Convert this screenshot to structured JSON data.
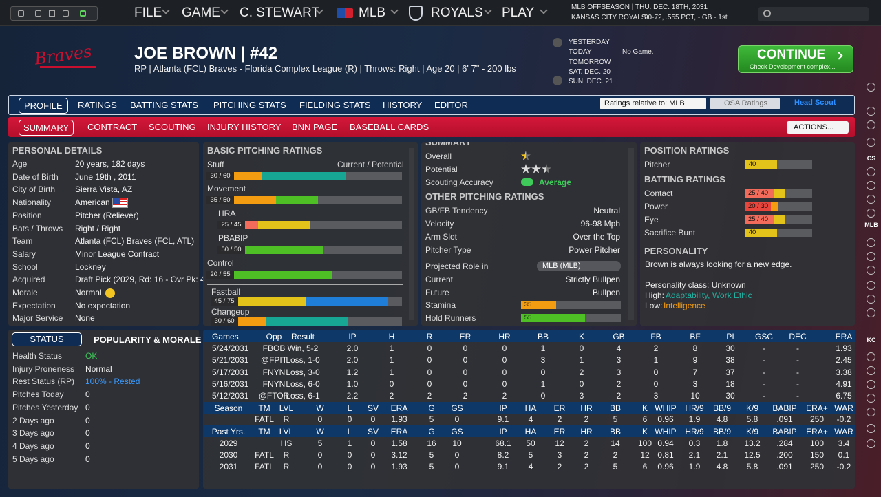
{
  "nav": {
    "items": [
      "FILE",
      "GAME",
      "C. STEWART",
      "MLB",
      "ROYALS",
      "PLAY"
    ]
  },
  "league_status": {
    "line1": "MLB OFFSEASON  |  THU. DEC. 18TH, 2031",
    "team": "KANSAS CITY ROYALS",
    "record": "90-72, .555 PCT, - GB - 1st"
  },
  "player": {
    "logo": "Braves",
    "name": "JOE BROWN  |  #42",
    "info": "RP | Atlanta (FCL) Braves - Florida Complex League (R)  |  Throws: Right  |  Age 20  |  6' 7\" - 200 lbs"
  },
  "schedule": {
    "days": [
      "YESTERDAY",
      "TODAY",
      "TOMORROW",
      "SAT. DEC. 20",
      "SUN. DEC. 21"
    ],
    "today_note": "No Game."
  },
  "continue_button": {
    "label": "CONTINUE",
    "sub": "Check Development complex..."
  },
  "tabs": {
    "items": [
      "PROFILE",
      "RATINGS",
      "BATTING STATS",
      "PITCHING STATS",
      "FIELDING STATS",
      "HISTORY",
      "EDITOR"
    ],
    "selected": 0
  },
  "subtabs": {
    "items": [
      "SUMMARY",
      "CONTRACT",
      "SCOUTING",
      "INJURY HISTORY",
      "BNN PAGE",
      "BASEBALL CARDS"
    ],
    "selected": 0
  },
  "controls": {
    "ratings_select": "Ratings relative to: MLB",
    "osa": "OSA Ratings",
    "scout": "Head Scout",
    "actions": "ACTIONS..."
  },
  "personal_details": {
    "title": "PERSONAL DETAILS",
    "rows": [
      {
        "label": "Age",
        "value": "20 years, 182 days"
      },
      {
        "label": "Date of Birth",
        "value": "June 19th , 2011"
      },
      {
        "label": "City of Birth",
        "value": "Sierra Vista, AZ"
      },
      {
        "label": "Nationality",
        "value": "American"
      },
      {
        "label": "Position",
        "value": "Pitcher (Reliever)"
      },
      {
        "label": "Bats / Throws",
        "value": "Right / Right"
      },
      {
        "label": "Team",
        "value": "Atlanta (FCL) Braves (FCL, ATL)"
      },
      {
        "label": "Salary",
        "value": "Minor League Contract"
      },
      {
        "label": "School",
        "value": "Lockney"
      },
      {
        "label": "Acquired",
        "value": "Draft Pick (2029, Rd: 16 - Ovr Pk: 4"
      },
      {
        "label": "Morale",
        "value": "Normal"
      },
      {
        "label": "Expectation",
        "value": "No expectation"
      },
      {
        "label": "Major Service",
        "value": "None"
      }
    ]
  },
  "status": {
    "tabs": [
      "STATUS",
      "POPULARITY & MORALE"
    ],
    "rows": [
      {
        "label": "Health Status",
        "value": "OK",
        "color": "#3ec95a"
      },
      {
        "label": "Injury Proneness",
        "value": "Normal"
      },
      {
        "label": "Rest Status (RP)",
        "value": "100% - Rested",
        "color": "#3a9bff"
      },
      {
        "label": "Pitches Today",
        "value": "0"
      },
      {
        "label": "Pitches Yesterday",
        "value": "0"
      },
      {
        "label": "2 Days ago",
        "value": "0"
      },
      {
        "label": "3 Days ago",
        "value": "0"
      },
      {
        "label": "4 Days ago",
        "value": "0"
      },
      {
        "label": "5 Days ago",
        "value": "0"
      }
    ]
  },
  "pitching_ratings": {
    "title": "BASIC PITCHING RATINGS",
    "header": "Current / Potential",
    "items": [
      {
        "name": "Stuff",
        "label": "30 / 60",
        "current": 30,
        "potential": 60
      },
      {
        "name": "Movement",
        "label": "35 / 50",
        "current": 35,
        "potential": 50
      },
      {
        "name": "HRA",
        "label": "25 / 45",
        "current": 25,
        "potential": 45,
        "sub": true
      },
      {
        "name": "PBABIP",
        "label": "50 / 50",
        "current": 50,
        "potential": 50,
        "sub": true
      },
      {
        "name": "Control",
        "label": "20 / 55",
        "current": 20,
        "potential": 55
      },
      {
        "name": "Fastball",
        "label": "45 / 75",
        "current": 45,
        "potential": 75,
        "pitch": true
      },
      {
        "name": "Changeup",
        "label": "30 / 60",
        "current": 30,
        "potential": 60,
        "pitch": true
      }
    ]
  },
  "summary": {
    "title": "SUMMARY",
    "overall_label": "Overall",
    "overall_stars": 0.5,
    "potential_label": "Potential",
    "potential_stars": 2.5,
    "accuracy_label": "Scouting Accuracy",
    "accuracy": "Average",
    "other_title": "OTHER PITCHING RATINGS",
    "rows": [
      {
        "label": "GB/FB Tendency",
        "value": "Neutral"
      },
      {
        "label": "Velocity",
        "value": "96-98 Mph"
      },
      {
        "label": "Arm Slot",
        "value": "Over the Top"
      },
      {
        "label": "Pitcher Type",
        "value": "Power Pitcher"
      }
    ],
    "role_label": "Projected Role in",
    "role_select": "MLB (MLB)",
    "role_rows": [
      {
        "label": "Current",
        "value": "Strictly Bullpen"
      },
      {
        "label": "Future",
        "value": "Bullpen"
      }
    ],
    "bars": [
      {
        "label": "Stamina",
        "value": 35
      },
      {
        "label": "Hold Runners",
        "value": 55
      }
    ]
  },
  "position_ratings": {
    "title": "POSITION RATINGS",
    "items": [
      {
        "name": "Pitcher",
        "value": 40
      }
    ]
  },
  "batting_ratings": {
    "title": "BATTING RATINGS",
    "items": [
      {
        "name": "Contact",
        "label": "25 / 40",
        "current": 25,
        "potential": 40
      },
      {
        "name": "Power",
        "label": "20 / 30",
        "current": 20,
        "potential": 30
      },
      {
        "name": "Eye",
        "label": "25 / 40",
        "current": 25,
        "potential": 40
      },
      {
        "name": "Sacrifice Bunt",
        "value": 40
      }
    ]
  },
  "personality": {
    "title": "PERSONALITY",
    "text": "Brown is always looking for a new edge.",
    "class": "Personality class: Unknown",
    "high_label": "High:",
    "high": "Adaptability, Work Ethic",
    "low_label": "Low:",
    "low": "Intelligence"
  },
  "game_log": {
    "columns": [
      "Games",
      "Opp",
      "Result",
      "IP",
      "H",
      "R",
      "ER",
      "HR",
      "BB",
      "K",
      "GB",
      "FB",
      "BF",
      "PI",
      "GSC",
      "DEC",
      "ERA"
    ],
    "rows": [
      [
        "5/24/2031",
        "FBOB",
        "Win, 5-2",
        "2.0",
        "1",
        "0",
        "0",
        "0",
        "1",
        "0",
        "4",
        "2",
        "8",
        "30",
        "-",
        "-",
        "1.93"
      ],
      [
        "5/21/2031",
        "@FPIT",
        "Loss, 1-0",
        "2.0",
        "1",
        "0",
        "0",
        "0",
        "3",
        "1",
        "3",
        "1",
        "9",
        "38",
        "-",
        "-",
        "2.45"
      ],
      [
        "5/17/2031",
        "FNYN",
        "Loss, 3-0",
        "1.2",
        "1",
        "0",
        "0",
        "0",
        "0",
        "2",
        "3",
        "0",
        "7",
        "37",
        "-",
        "-",
        "3.38"
      ],
      [
        "5/16/2031",
        "FNYN",
        "Loss, 6-0",
        "1.0",
        "0",
        "0",
        "0",
        "0",
        "1",
        "0",
        "2",
        "0",
        "3",
        "18",
        "-",
        "-",
        "4.91"
      ],
      [
        "5/12/2031",
        "@FTOR",
        "Loss, 6-1",
        "2.2",
        "2",
        "2",
        "2",
        "2",
        "0",
        "3",
        "2",
        "3",
        "10",
        "30",
        "-",
        "-",
        "6.75"
      ]
    ]
  },
  "season": {
    "columns": [
      "Season",
      "TM",
      "LVL",
      "W",
      "L",
      "SV",
      "ERA",
      "G",
      "GS",
      "IP",
      "HA",
      "ER",
      "HR",
      "BB",
      "K",
      "WHIP",
      "HR/9",
      "BB/9",
      "K/9",
      "BABIP",
      "ERA+",
      "WAR"
    ],
    "rows": [
      [
        null,
        "FATL",
        "R",
        "0",
        "0",
        "0",
        "1.93",
        "5",
        "0",
        "9.1",
        "4",
        "2",
        "2",
        "5",
        "6",
        "0.96",
        "1.9",
        "4.8",
        "5.8",
        ".091",
        "250",
        "-0.2"
      ]
    ]
  },
  "past_years": {
    "columns": [
      "Past Yrs.",
      "TM",
      "LVL",
      "W",
      "L",
      "SV",
      "ERA",
      "G",
      "GS",
      "IP",
      "HA",
      "ER",
      "HR",
      "BB",
      "K",
      "WHIP",
      "HR/9",
      "BB/9",
      "K/9",
      "BABIP",
      "ERA+",
      "WAR"
    ],
    "rows": [
      [
        "2029",
        null,
        "HS",
        "5",
        "1",
        "0",
        "1.58",
        "16",
        "10",
        "68.1",
        "50",
        "12",
        "2",
        "14",
        "100",
        "0.94",
        "0.3",
        "1.8",
        "13.2",
        ".284",
        "100",
        "3.4"
      ],
      [
        "2030",
        "FATL",
        "R",
        "0",
        "0",
        "0",
        "3.12",
        "5",
        "0",
        "8.2",
        "5",
        "3",
        "2",
        "2",
        "12",
        "0.81",
        "2.1",
        "2.1",
        "12.5",
        ".200",
        "150",
        "0.1"
      ],
      [
        "2031",
        "FATL",
        "R",
        "0",
        "0",
        "0",
        "1.93",
        "5",
        "0",
        "9.1",
        "4",
        "2",
        "2",
        "5",
        "6",
        "0.96",
        "1.9",
        "4.8",
        "5.8",
        ".091",
        "250",
        "-0.2"
      ]
    ]
  },
  "sidebar": {
    "labels": [
      "CS",
      "MLB",
      "KC"
    ]
  }
}
